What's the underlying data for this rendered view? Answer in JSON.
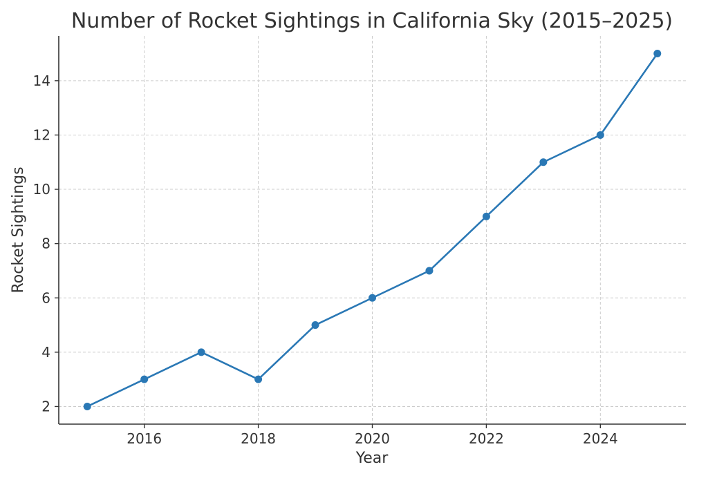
{
  "chart_data": {
    "type": "line",
    "title": "Number of Rocket Sightings in California Sky (2015–2025)",
    "xlabel": "Year",
    "ylabel": "Rocket Sightings",
    "x": [
      2015,
      2016,
      2017,
      2018,
      2019,
      2020,
      2021,
      2022,
      2023,
      2024,
      2025
    ],
    "series": [
      {
        "values": [
          2,
          3,
          4,
          3,
          5,
          6,
          7,
          9,
          11,
          12,
          15
        ],
        "color": "#2a78b5",
        "marker": "circle"
      }
    ],
    "xlim": [
      2014.5,
      2025.5
    ],
    "ylim": [
      1.35,
      15.65
    ],
    "xticks": [
      2016,
      2018,
      2020,
      2022,
      2024
    ],
    "yticks": [
      2,
      4,
      6,
      8,
      10,
      12,
      14
    ],
    "grid": true,
    "grid_style": "dashed",
    "legend": "none"
  }
}
